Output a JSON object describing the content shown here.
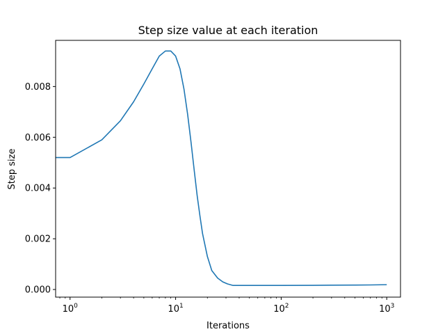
{
  "chart_data": {
    "type": "line",
    "title": "Step size value at each iteration",
    "xlabel": "Iterations",
    "ylabel": "Step size",
    "xscale": "log",
    "xlim": [
      0.73,
      1350
    ],
    "ylim": [
      -0.0003,
      0.00982
    ],
    "grid": false,
    "legend": "none",
    "x_ticks": [
      {
        "value": 1,
        "base": "10",
        "exp": "0"
      },
      {
        "value": 10,
        "base": "10",
        "exp": "1"
      },
      {
        "value": 100,
        "base": "10",
        "exp": "2"
      },
      {
        "value": 1000,
        "base": "10",
        "exp": "3"
      }
    ],
    "y_ticks": [
      {
        "value": 0.0,
        "label": "0.000"
      },
      {
        "value": 0.002,
        "label": "0.002"
      },
      {
        "value": 0.004,
        "label": "0.004"
      },
      {
        "value": 0.006,
        "label": "0.006"
      },
      {
        "value": 0.008,
        "label": "0.008"
      }
    ],
    "series": [
      {
        "color": "#1f77b4",
        "x": [
          0.73,
          1,
          2,
          3,
          4,
          5,
          6,
          7,
          8,
          9,
          10,
          11,
          12,
          13,
          14,
          15,
          16,
          17,
          18,
          20,
          22,
          25,
          28,
          31,
          35,
          40,
          50,
          70,
          100,
          200,
          300,
          500,
          700,
          1000
        ],
        "y": [
          0.0052,
          0.0052,
          0.0059,
          0.00665,
          0.0074,
          0.0081,
          0.0087,
          0.0092,
          0.0094,
          0.0094,
          0.0092,
          0.0087,
          0.0079,
          0.0069,
          0.0058,
          0.0047,
          0.0037,
          0.0029,
          0.0022,
          0.0013,
          0.00075,
          0.00045,
          0.0003,
          0.00022,
          0.00016,
          0.00016,
          0.00016,
          0.00016,
          0.00016,
          0.000165,
          0.00017,
          0.000175,
          0.00018,
          0.00019
        ]
      }
    ]
  }
}
